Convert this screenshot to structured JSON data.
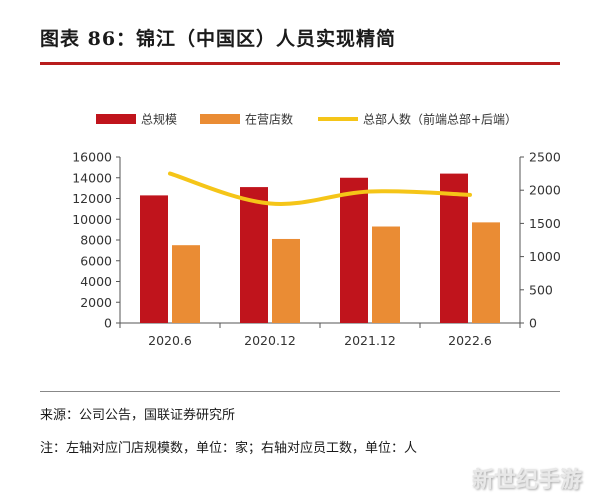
{
  "header": {
    "title": "图表 86：锦江（中国区）人员实现精简"
  },
  "footer": {
    "source": "来源：公司公告，国联证券研究所",
    "note": "注：左轴对应门店规模数，单位：家；右轴对应员工数，单位：人",
    "watermark": "新世纪手游"
  },
  "colors": {
    "bar_total": "#c0141c",
    "bar_stores": "#ea8c34",
    "line_staff": "#f5c518",
    "rule": "#b81c1c"
  },
  "chart_data": {
    "type": "bar",
    "categories": [
      "2020.6",
      "2020.12",
      "2021.12",
      "2022.6"
    ],
    "series": [
      {
        "name": "总规模",
        "type": "bar",
        "axis": "left",
        "values": [
          12300,
          13100,
          14000,
          14400
        ]
      },
      {
        "name": "在营店数",
        "type": "bar",
        "axis": "left",
        "values": [
          7500,
          8100,
          9300,
          9700
        ]
      },
      {
        "name": "总部人数（前端总部+后端）",
        "type": "line",
        "axis": "right",
        "values": [
          2250,
          1800,
          1980,
          1930
        ]
      }
    ],
    "y_left": {
      "ylim": [
        0,
        16000
      ],
      "ticks": [
        0,
        2000,
        4000,
        6000,
        8000,
        10000,
        12000,
        14000,
        16000
      ]
    },
    "y_right": {
      "ylim": [
        0,
        2500
      ],
      "ticks": [
        0,
        500,
        1000,
        1500,
        2000,
        2500
      ]
    },
    "legend": "top",
    "grid": false
  }
}
